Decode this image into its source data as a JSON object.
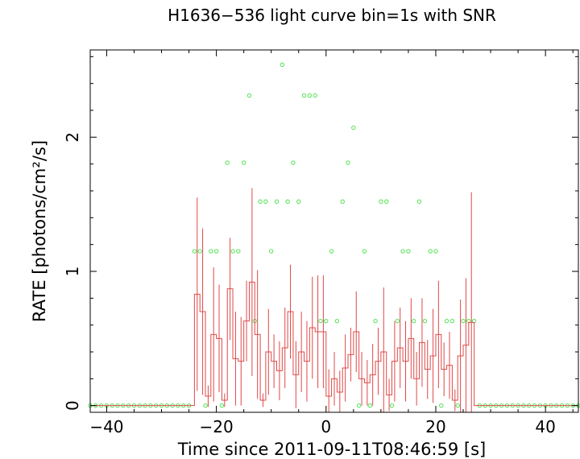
{
  "chart_data": {
    "type": "line",
    "title": "H1636−536 light curve bin=1s with SNR",
    "xlabel": "Time since 2011-09-11T08:46:59 [s]",
    "ylabel": "RATE [photons/cm²/s]",
    "xlim": [
      -43,
      46
    ],
    "ylim": [
      -0.05,
      2.65
    ],
    "x_ticks": [
      -40,
      -20,
      0,
      20,
      40
    ],
    "x_tick_labels": [
      "−40",
      "−20",
      "0",
      "20",
      "40"
    ],
    "y_ticks": [
      0,
      1,
      2
    ],
    "y_tick_labels": [
      "0",
      "1",
      "2"
    ],
    "grid": false,
    "colors": {
      "rate": "#e04848",
      "snr": "#40e040",
      "axes": "#000000"
    },
    "series": [
      {
        "style": "step-with-error-bars",
        "bins": [
          {
            "t": -24,
            "rate": 0.83,
            "err": 0.72
          },
          {
            "t": -23,
            "rate": 0.7,
            "err": 0.62
          },
          {
            "t": -22,
            "rate": 0.07,
            "err": 0.08
          },
          {
            "t": -21,
            "rate": 0.53,
            "err": 0.5
          },
          {
            "t": -20,
            "rate": 0.5,
            "err": 0.4
          },
          {
            "t": -19,
            "rate": 0.04,
            "err": 0.05
          },
          {
            "t": -18,
            "rate": 0.87,
            "err": 0.38
          },
          {
            "t": -17,
            "rate": 0.35,
            "err": 0.35
          },
          {
            "t": -16,
            "rate": 0.33,
            "err": 0.33
          },
          {
            "t": -15,
            "rate": 0.63,
            "err": 0.3
          },
          {
            "t": -14,
            "rate": 0.92,
            "err": 0.7
          },
          {
            "t": -13,
            "rate": 0.53,
            "err": 0.48
          },
          {
            "t": -12,
            "rate": 0.04,
            "err": 0.05
          },
          {
            "t": -11,
            "rate": 0.4,
            "err": 0.32
          },
          {
            "t": -10,
            "rate": 0.33,
            "err": 0.2
          },
          {
            "t": -9,
            "rate": 0.26,
            "err": 0.22
          },
          {
            "t": -8,
            "rate": 0.43,
            "err": 0.3
          },
          {
            "t": -7,
            "rate": 0.7,
            "err": 0.35
          },
          {
            "t": -6,
            "rate": 0.23,
            "err": 0.25
          },
          {
            "t": -5,
            "rate": 0.4,
            "err": 0.3
          },
          {
            "t": -4,
            "rate": 0.33,
            "err": 0.3
          },
          {
            "t": -3,
            "rate": 0.58,
            "err": 0.38
          },
          {
            "t": -2,
            "rate": 0.55,
            "err": 0.42
          },
          {
            "t": -1,
            "rate": 0.55,
            "err": 0.42
          },
          {
            "t": 0,
            "rate": 0.07,
            "err": 0.2
          },
          {
            "t": 1,
            "rate": 0.2,
            "err": 0.2
          },
          {
            "t": 2,
            "rate": 0.1,
            "err": 0.16
          },
          {
            "t": 3,
            "rate": 0.28,
            "err": 0.25
          },
          {
            "t": 4,
            "rate": 0.38,
            "err": 0.2
          },
          {
            "t": 5,
            "rate": 0.55,
            "err": 0.3
          },
          {
            "t": 6,
            "rate": 0.2,
            "err": 0.2
          },
          {
            "t": 7,
            "rate": 0.17,
            "err": 0.17
          },
          {
            "t": 8,
            "rate": 0.23,
            "err": 0.23
          },
          {
            "t": 9,
            "rate": 0.33,
            "err": 0.25
          },
          {
            "t": 10,
            "rate": 0.4,
            "err": 0.48
          },
          {
            "t": 11,
            "rate": 0.08,
            "err": 0.12
          },
          {
            "t": 12,
            "rate": 0.33,
            "err": 0.3
          },
          {
            "t": 13,
            "rate": 0.43,
            "err": 0.3
          },
          {
            "t": 14,
            "rate": 0.33,
            "err": 0.3
          },
          {
            "t": 15,
            "rate": 0.5,
            "err": 0.3
          },
          {
            "t": 16,
            "rate": 0.2,
            "err": 0.2
          },
          {
            "t": 17,
            "rate": 0.47,
            "err": 0.33
          },
          {
            "t": 18,
            "rate": 0.27,
            "err": 0.22
          },
          {
            "t": 19,
            "rate": 0.37,
            "err": 0.35
          },
          {
            "t": 20,
            "rate": 0.53,
            "err": 0.4
          },
          {
            "t": 21,
            "rate": 0.27,
            "err": 0.2
          },
          {
            "t": 22,
            "rate": 0.3,
            "err": 0.25
          },
          {
            "t": 23,
            "rate": 0.04,
            "err": 0.08
          },
          {
            "t": 24,
            "rate": 0.37,
            "err": 0.42
          },
          {
            "t": 25,
            "rate": 0.45,
            "err": 0.5
          },
          {
            "t": 26,
            "rate": 0.62,
            "err": 0.97
          }
        ],
        "baseline_rate": 0
      },
      {
        "style": "open-circles",
        "x": [
          -43,
          -42,
          -41,
          -40,
          -39,
          -38,
          -37,
          -36,
          -35,
          -34,
          -33,
          -32,
          -31,
          -30,
          -29,
          -28,
          -27,
          -26,
          -25,
          -24,
          -23,
          -22,
          -21,
          -20,
          -19,
          -18,
          -17,
          -16,
          -15,
          -14,
          -13,
          -12,
          -11,
          -10,
          -9,
          -8,
          -7,
          -6,
          -5,
          -4,
          -3,
          -2,
          -1,
          0,
          1,
          2,
          3,
          4,
          5,
          6,
          7,
          8,
          9,
          10,
          11,
          12,
          13,
          14,
          15,
          16,
          17,
          18,
          19,
          20,
          21,
          22,
          23,
          24,
          25,
          26,
          27,
          28,
          29,
          30,
          31,
          32,
          33,
          34,
          35,
          36,
          37,
          38,
          39,
          40,
          41,
          42,
          43,
          44,
          45,
          46
        ],
        "y": [
          0,
          0,
          0,
          0,
          0,
          0,
          0,
          0,
          0,
          0,
          0,
          0,
          0,
          0,
          0,
          0,
          0,
          0,
          0,
          1.15,
          1.15,
          0,
          1.15,
          1.15,
          0,
          1.81,
          1.15,
          1.15,
          1.81,
          2.31,
          0.63,
          1.52,
          1.52,
          1.15,
          1.52,
          2.54,
          1.52,
          1.81,
          1.52,
          2.31,
          2.31,
          2.31,
          0.63,
          0.63,
          1.15,
          0.63,
          1.52,
          1.81,
          2.07,
          0,
          1.15,
          0,
          0.63,
          1.52,
          1.52,
          0,
          0.63,
          1.15,
          1.15,
          0.63,
          1.52,
          0.63,
          1.15,
          1.15,
          0,
          0.63,
          0.63,
          0,
          0.63,
          0.63,
          0.63,
          0,
          0,
          0,
          0,
          0,
          0,
          0,
          0,
          0,
          0,
          0,
          0,
          0,
          0,
          0,
          0,
          0,
          0,
          0
        ]
      }
    ]
  }
}
